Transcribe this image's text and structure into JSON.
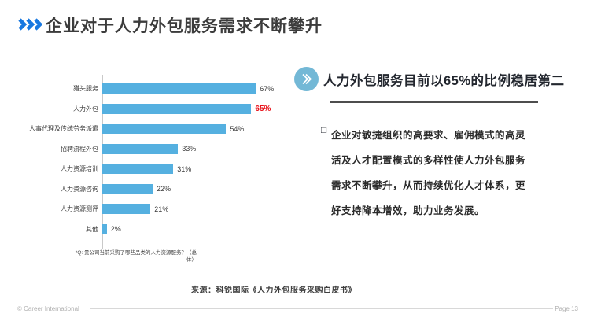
{
  "slide": {
    "title": "企业对于人力外包服务需求不断攀升",
    "source": "来源：科锐国际《人力外包服务采购白皮书》",
    "footer": {
      "copyright": "© Career International",
      "page": "Page 13"
    }
  },
  "colors": {
    "title_chevron_blue": "#1878e0",
    "bar_blue": "#55b0e0",
    "highlight_red": "#e8121a",
    "circle_icon_blue": "#73b8d6",
    "axis_gray": "#c9c9c9"
  },
  "chart_data": {
    "type": "bar",
    "orientation": "horizontal",
    "title": "",
    "xlabel": "",
    "ylabel": "",
    "categories": [
      "猎头服务",
      "人力外包",
      "人事代理及传统劳务派遣",
      "招聘流程外包",
      "人力资源培训",
      "人力资源咨询",
      "人力资源测评",
      "其他"
    ],
    "values": [
      67,
      65,
      54,
      33,
      31,
      22,
      21,
      2
    ],
    "value_labels": [
      "67%",
      "65%",
      "54%",
      "33%",
      "31%",
      "22%",
      "21%",
      "2%"
    ],
    "highlight_index": 1,
    "bar_color": "#55b0e0",
    "highlight_value_color": "#e8121a",
    "xlim": [
      0,
      70
    ],
    "grid": false,
    "legend": false,
    "caption_lines": [
      "*Q: 贵公司当前采购了哪些品类的人力资源服务？（总",
      "体）"
    ]
  },
  "right_panel": {
    "heading": "人力外包服务目前以65%的比例稳居第二",
    "bullet": "□",
    "body_lines": [
      "企业对敏捷组织的高要求、雇佣模式的高灵",
      "活及人才配置模式的多样性使人力外包服务",
      "需求不断攀升，从而持续优化人才体系，更",
      "好支持降本增效，助力业务发展。"
    ]
  }
}
